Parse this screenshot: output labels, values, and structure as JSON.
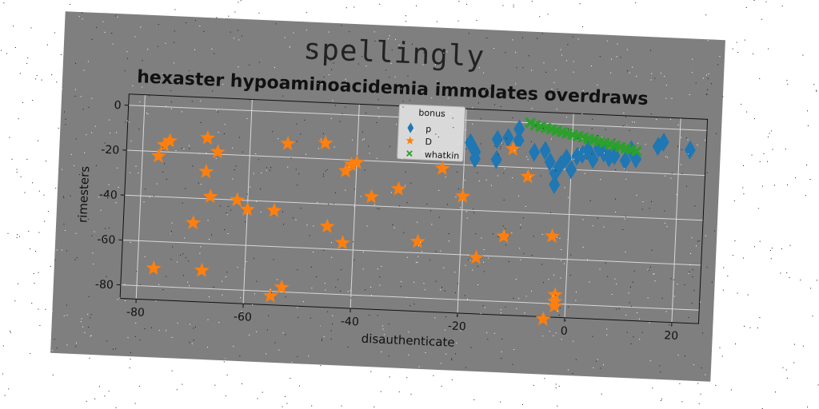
{
  "suptitle": "spellingly",
  "chart_data": {
    "type": "scatter",
    "title": "hexaster hypoaminoacidemia immolates overdraws",
    "xlabel": "disauthenticate",
    "ylabel": "rimesters",
    "xlim": [
      -83,
      25
    ],
    "ylim": [
      -86,
      5
    ],
    "xticks": [
      -80,
      -60,
      -40,
      -20,
      0,
      20
    ],
    "yticks": [
      0,
      -20,
      -40,
      -60,
      -80
    ],
    "grid": true,
    "legend": {
      "title": "bonus",
      "placement": "top-center"
    },
    "colors": {
      "background": "#7f7f7f",
      "p": "#1f77b4",
      "D": "#ff7f0e",
      "whatkin": "#2ca02c"
    },
    "series": [
      {
        "name": "p",
        "marker": "diamond",
        "points": [
          [
            -19,
            -10
          ],
          [
            -18,
            -14
          ],
          [
            -14,
            -8
          ],
          [
            -12,
            -7
          ],
          [
            -10,
            -8
          ],
          [
            -18,
            -17
          ],
          [
            -14,
            -17
          ],
          [
            -10,
            -3
          ],
          [
            -7,
            -13
          ],
          [
            -5,
            -12
          ],
          [
            -4,
            -17
          ],
          [
            -3,
            -22
          ],
          [
            -2,
            -18
          ],
          [
            -3,
            -27
          ],
          [
            -1,
            -15
          ],
          [
            0,
            -20
          ],
          [
            1,
            -14
          ],
          [
            2,
            -13
          ],
          [
            3,
            -11
          ],
          [
            4,
            -15
          ],
          [
            5,
            -10
          ],
          [
            6,
            -12
          ],
          [
            7,
            -14
          ],
          [
            8,
            -13
          ],
          [
            10,
            -15
          ],
          [
            11,
            -10
          ],
          [
            12,
            -14
          ],
          [
            16,
            -8
          ],
          [
            17,
            -6
          ],
          [
            22,
            -9
          ]
        ]
      },
      {
        "name": "D",
        "marker": "star",
        "points": [
          [
            -76,
            -17
          ],
          [
            -77,
            -22
          ],
          [
            -75,
            -15
          ],
          [
            -68,
            -13
          ],
          [
            -68,
            -28
          ],
          [
            -66,
            -19
          ],
          [
            -67,
            -39
          ],
          [
            -70,
            -51
          ],
          [
            -62,
            -40
          ],
          [
            -60,
            -44
          ],
          [
            -77,
            -72
          ],
          [
            -68,
            -72
          ],
          [
            -55,
            -44
          ],
          [
            -53,
            -14
          ],
          [
            -46,
            -13
          ],
          [
            -55,
            -82
          ],
          [
            -53,
            -78
          ],
          [
            -45,
            -50
          ],
          [
            -42,
            -57
          ],
          [
            -42,
            -25
          ],
          [
            -41,
            -22
          ],
          [
            -40,
            -21
          ],
          [
            -37,
            -36
          ],
          [
            -32,
            -32
          ],
          [
            -28,
            -55
          ],
          [
            -24,
            -22
          ],
          [
            -20,
            -34
          ],
          [
            -17,
            -61
          ],
          [
            -12,
            -51
          ],
          [
            -11,
            -12
          ],
          [
            -8,
            -24
          ],
          [
            -3,
            -50
          ],
          [
            -2,
            -76
          ],
          [
            -2,
            -79
          ],
          [
            -2,
            -81
          ],
          [
            -4,
            -87
          ]
        ]
      },
      {
        "name": "whatkin",
        "marker": "x",
        "points": [
          [
            -8,
            0
          ],
          [
            -7,
            -1
          ],
          [
            -6,
            -1.5
          ],
          [
            -5,
            -2
          ],
          [
            -4,
            -2.5
          ],
          [
            -3,
            -3
          ],
          [
            -2,
            -3.5
          ],
          [
            -1,
            -4
          ],
          [
            0,
            -4.5
          ],
          [
            1,
            -5
          ],
          [
            2,
            -5.5
          ],
          [
            3,
            -6
          ],
          [
            4,
            -6.5
          ],
          [
            5,
            -7
          ],
          [
            6,
            -7.5
          ],
          [
            7,
            -8
          ],
          [
            8,
            -8.5
          ],
          [
            9,
            -9
          ],
          [
            10,
            -9.5
          ],
          [
            11,
            -10
          ],
          [
            12,
            -10.5
          ]
        ]
      }
    ]
  }
}
